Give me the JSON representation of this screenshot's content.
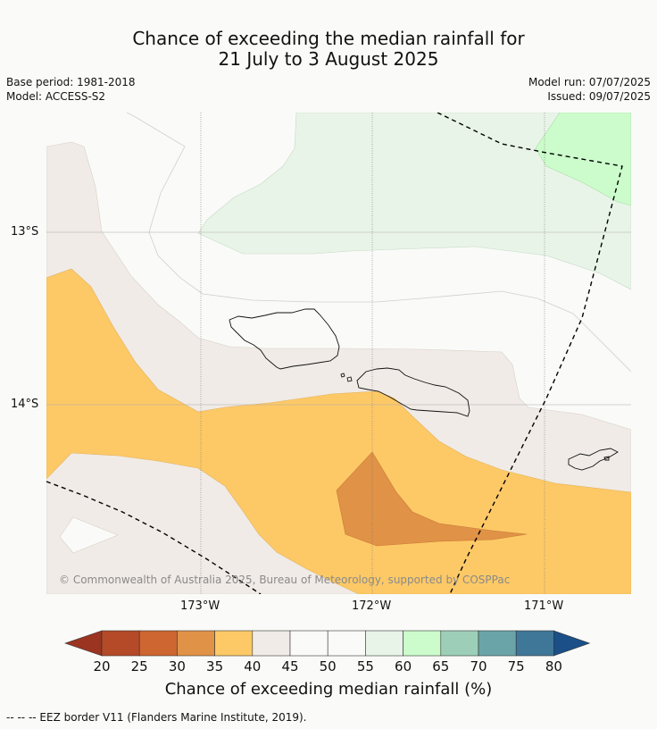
{
  "title": {
    "line1": "Chance of exceeding the median rainfall for",
    "line2": "21 July to 3 August 2025"
  },
  "meta": {
    "base_period": "Base period: 1981-2018",
    "model": "Model: ACCESS-S2",
    "model_run": "Model run: 07/07/2025",
    "issued": "Issued: 09/07/2025"
  },
  "map": {
    "lat_labels": [
      "13°S",
      "14°S"
    ],
    "lon_labels": [
      "173°W",
      "172°W",
      "171°W"
    ],
    "copyright": "© Commonwealth of Australia 2025, Bureau of Meteorology, supported by COSPPac"
  },
  "colorbar": {
    "ticks": [
      "20",
      "25",
      "30",
      "35",
      "40",
      "45",
      "50",
      "55",
      "60",
      "65",
      "70",
      "75",
      "80"
    ],
    "title": "Chance of exceeding median rainfall (%)",
    "colors": [
      "#9b3420",
      "#b44a27",
      "#cd6630",
      "#e09246",
      "#fdc966",
      "#f0ebe6",
      "#fafbf8",
      "#fafbf8",
      "#e9f4e8",
      "#ccfccb",
      "#9dcfb8",
      "#6aa4a8",
      "#3f7799",
      "#1a4f88"
    ]
  },
  "footer": "--  --  -- EEZ border V11 (Flanders Marine Institute, 2019)."
}
